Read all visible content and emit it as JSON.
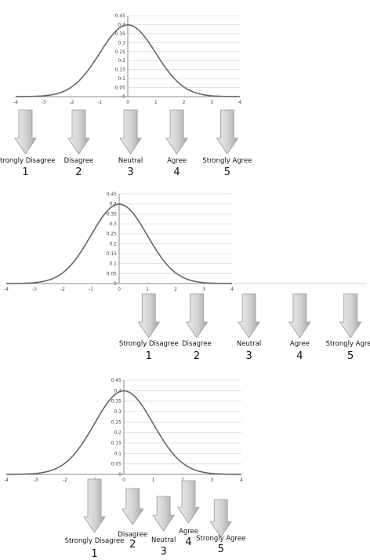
{
  "chart_data": [
    {
      "type": "line",
      "series": [
        {
          "distribution": "standard normal",
          "mean": 0,
          "sd": 1,
          "peak": 0.4
        }
      ],
      "xlim": [
        -4,
        4
      ],
      "ylim": [
        0,
        0.45
      ],
      "xticks": [
        "-4",
        "-3",
        "-2",
        "-1",
        "0",
        "1",
        "2",
        "3",
        "4"
      ],
      "yticks": [
        "0",
        "0.05",
        "0.1",
        "0.15",
        "0.2",
        "0.25",
        "0.3",
        "0.35",
        "0.4",
        "0.45"
      ],
      "grid": true,
      "annotations": [
        {
          "label": "Strongly Disagree",
          "number": "1",
          "x": -3.65
        },
        {
          "label": "Disagree",
          "number": "2",
          "x": -1.75
        },
        {
          "label": "Neutral",
          "number": "3",
          "x": 0.1
        },
        {
          "label": "Agree",
          "number": "4",
          "x": 1.75
        },
        {
          "label": "Strongly Agree",
          "number": "5",
          "x": 3.55
        }
      ]
    },
    {
      "type": "line",
      "series": [
        {
          "distribution": "standard normal",
          "mean": 0,
          "sd": 1,
          "peak": 0.4
        }
      ],
      "xlim": [
        -4,
        4
      ],
      "ylim": [
        0,
        0.45
      ],
      "xticks": [
        "-4",
        "-3",
        "-2",
        "-1",
        "0",
        "1",
        "2",
        "3",
        "4"
      ],
      "yticks": [
        "0",
        "0.05",
        "0.1",
        "0.15",
        "0.2",
        "0.25",
        "0.3",
        "0.35",
        "0.4",
        "0.45"
      ],
      "grid": true,
      "annotations": [
        {
          "label": "Strongly Disagree",
          "number": "1",
          "x": 1.05
        },
        {
          "label": "Disagree",
          "number": "2",
          "x": 2.75
        },
        {
          "label": "Neutral",
          "number": "3",
          "x": 4.6
        },
        {
          "label": "Agree",
          "number": "4",
          "x": 6.4
        },
        {
          "label": "Strongly Agree",
          "number": "5",
          "x": 8.2
        }
      ]
    },
    {
      "type": "line",
      "series": [
        {
          "distribution": "standard normal",
          "mean": 0,
          "sd": 1,
          "peak": 0.4
        }
      ],
      "xlim": [
        -4,
        4
      ],
      "ylim": [
        0,
        0.45
      ],
      "xticks": [
        "-4",
        "-3",
        "-2",
        "-1",
        "0",
        "1",
        "2",
        "3",
        "4"
      ],
      "yticks": [
        "0",
        "0.05",
        "0.1",
        "0.15",
        "0.2",
        "0.25",
        "0.3",
        "0.35",
        "0.4",
        "0.45"
      ],
      "grid": true,
      "annotations": [
        {
          "label": "Strongly Disagree",
          "number": "1",
          "x": -1.0
        },
        {
          "label": "Disagree",
          "number": "2",
          "x": 0.3
        },
        {
          "label": "Neutral",
          "number": "3",
          "x": 1.35
        },
        {
          "label": "Agree",
          "number": "4",
          "x": 2.2
        },
        {
          "label": "Strongly Agree",
          "number": "5",
          "x": 3.3
        }
      ]
    }
  ],
  "colors": {
    "curve": "#666666",
    "grid": "#dcdcdc",
    "axis": "#888888",
    "arrow_light": "#eeeeee",
    "arrow_dark": "#a8a8a8"
  }
}
